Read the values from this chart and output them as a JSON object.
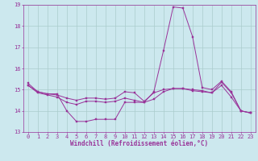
{
  "xlabel": "Windchill (Refroidissement éolien,°C)",
  "background_color": "#cce8ee",
  "grid_color": "#aacccc",
  "line_color": "#993399",
  "xlim": [
    -0.5,
    23.5
  ],
  "ylim": [
    13,
    19
  ],
  "yticks": [
    13,
    14,
    15,
    16,
    17,
    18,
    19
  ],
  "xticks": [
    0,
    1,
    2,
    3,
    4,
    5,
    6,
    7,
    8,
    9,
    10,
    11,
    12,
    13,
    14,
    15,
    16,
    17,
    18,
    19,
    20,
    21,
    22,
    23
  ],
  "line1_x": [
    0,
    1,
    2,
    3,
    4,
    5,
    6,
    7,
    8,
    9,
    10,
    11,
    12,
    13,
    14,
    15,
    16,
    17,
    18,
    19,
    20,
    21,
    22,
    23
  ],
  "line1_y": [
    15.3,
    14.9,
    14.8,
    14.8,
    14.0,
    13.5,
    13.5,
    13.6,
    13.6,
    13.6,
    14.4,
    14.4,
    14.4,
    14.9,
    16.85,
    18.9,
    18.85,
    17.5,
    15.1,
    15.0,
    15.4,
    14.9,
    14.0,
    13.9
  ],
  "line2_x": [
    0,
    1,
    2,
    3,
    4,
    5,
    6,
    7,
    8,
    9,
    10,
    11,
    12,
    13,
    14,
    15,
    16,
    17,
    18,
    19,
    20,
    21,
    22,
    23
  ],
  "line2_y": [
    15.2,
    14.9,
    14.8,
    14.75,
    14.6,
    14.5,
    14.6,
    14.6,
    14.55,
    14.6,
    14.9,
    14.85,
    14.45,
    14.85,
    15.0,
    15.05,
    15.05,
    15.0,
    14.95,
    14.85,
    15.35,
    14.85,
    14.0,
    13.9
  ],
  "line3_x": [
    0,
    1,
    2,
    3,
    4,
    5,
    6,
    7,
    8,
    9,
    10,
    11,
    12,
    13,
    14,
    15,
    16,
    17,
    18,
    19,
    20,
    21,
    22,
    23
  ],
  "line3_y": [
    15.2,
    14.85,
    14.75,
    14.65,
    14.4,
    14.3,
    14.45,
    14.45,
    14.4,
    14.45,
    14.6,
    14.5,
    14.4,
    14.55,
    14.9,
    15.05,
    15.05,
    14.95,
    14.9,
    14.85,
    15.2,
    14.65,
    14.0,
    13.9
  ]
}
